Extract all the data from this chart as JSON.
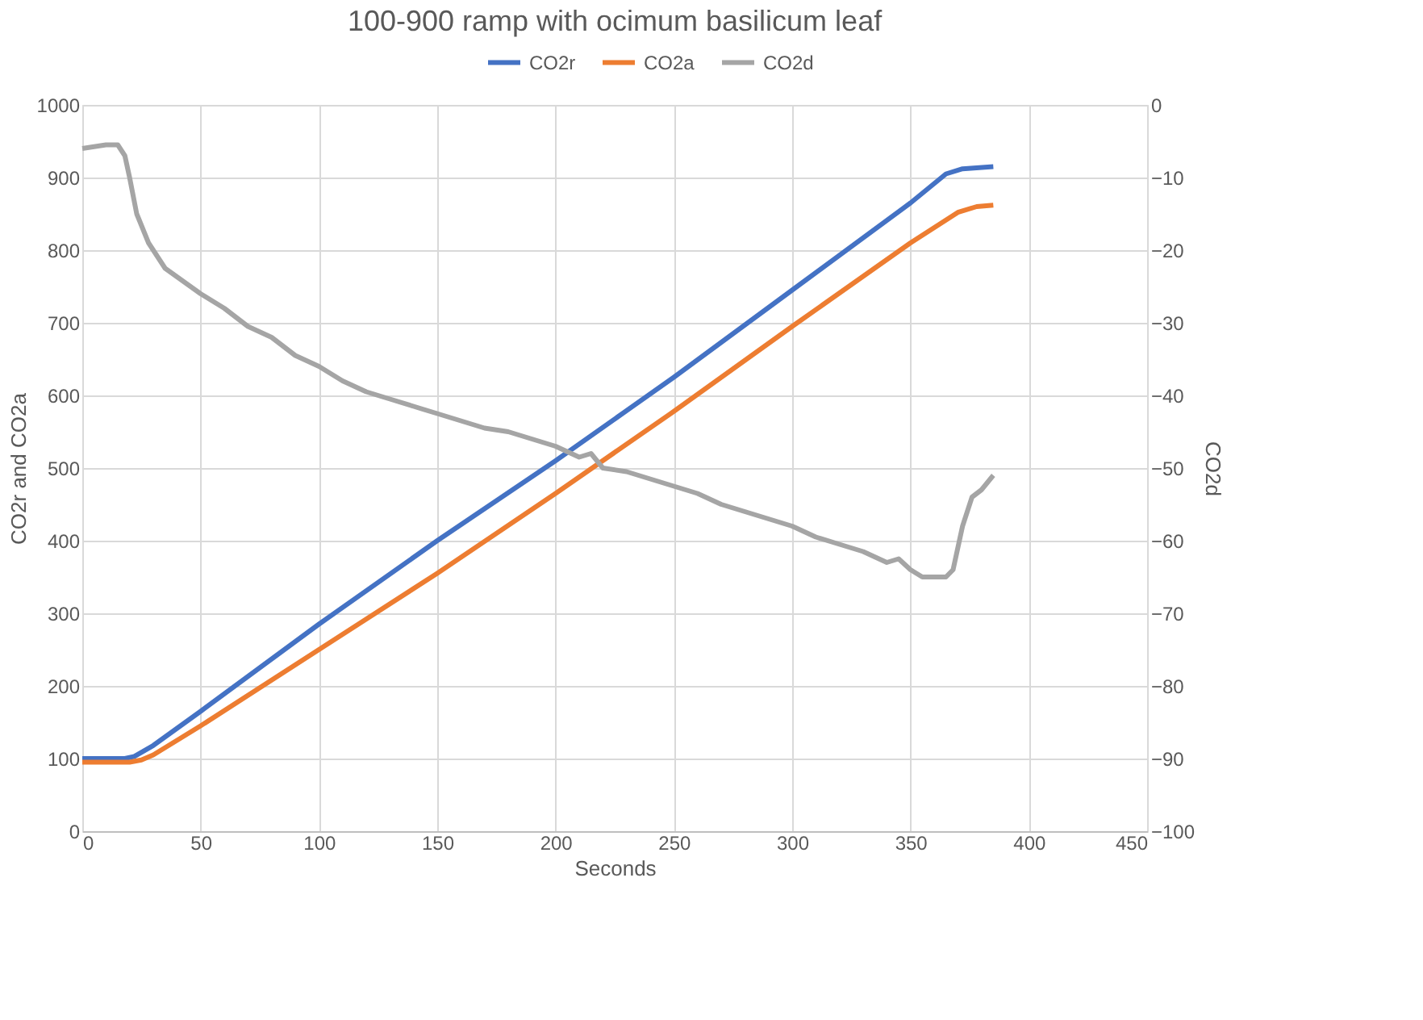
{
  "chart_data": {
    "type": "line",
    "title": "100-900 ramp with ocimum basilicum leaf",
    "xlabel": "Seconds",
    "ylabel": "CO2r and CO2a",
    "y2label": "CO2d",
    "xlim": [
      0,
      450
    ],
    "xticks": [
      0,
      50,
      100,
      150,
      200,
      250,
      300,
      350,
      400,
      450
    ],
    "ylim": [
      0,
      1000
    ],
    "yticks": [
      0,
      100,
      200,
      300,
      400,
      500,
      600,
      700,
      800,
      900,
      1000
    ],
    "y2lim": [
      -100,
      0
    ],
    "y2ticks": [
      -100,
      -90,
      -80,
      -70,
      -60,
      -50,
      -40,
      -30,
      -20,
      -10,
      0
    ],
    "grid": true,
    "legend": "top",
    "marker": "none",
    "line_style": "solid",
    "series": [
      {
        "name": "CO2r",
        "color": "#4472c4",
        "x": [
          0,
          18,
          22,
          30,
          50,
          100,
          150,
          200,
          250,
          300,
          350,
          365,
          372,
          385
        ],
        "values": [
          100,
          100,
          103,
          118,
          165,
          285,
          400,
          510,
          625,
          745,
          865,
          905,
          912,
          915
        ]
      },
      {
        "name": "CO2a",
        "color": "#ed7d31",
        "x": [
          0,
          20,
          25,
          30,
          50,
          100,
          150,
          200,
          250,
          300,
          350,
          370,
          378,
          385
        ],
        "values": [
          95,
          95,
          98,
          105,
          145,
          250,
          355,
          465,
          578,
          695,
          810,
          852,
          860,
          862
        ]
      },
      {
        "name": "CO2d",
        "color": "#a5a5a5",
        "axis": "y2",
        "x": [
          0,
          10,
          15,
          18,
          20,
          23,
          28,
          35,
          50,
          60,
          70,
          80,
          90,
          100,
          110,
          120,
          130,
          140,
          150,
          160,
          170,
          180,
          190,
          200,
          210,
          215,
          220,
          230,
          240,
          250,
          260,
          270,
          280,
          290,
          300,
          310,
          320,
          330,
          340,
          345,
          350,
          355,
          360,
          365,
          368,
          372,
          376,
          380,
          385
        ],
        "values": [
          -6,
          -5.5,
          -5.5,
          -7,
          -10,
          -15,
          -19,
          -22.5,
          -26,
          -28,
          -30.5,
          -32,
          -34.5,
          -36,
          -38,
          -39.5,
          -40.5,
          -41.5,
          -42.5,
          -43.5,
          -44.5,
          -45,
          -46,
          -47,
          -48.5,
          -48,
          -50,
          -50.5,
          -51.5,
          -52.5,
          -53.5,
          -55,
          -56,
          -57,
          -58,
          -59.5,
          -60.5,
          -61.5,
          -63,
          -62.5,
          -64,
          -65,
          -65,
          -65,
          -64,
          -58,
          -54,
          -53,
          -51
        ]
      }
    ]
  }
}
